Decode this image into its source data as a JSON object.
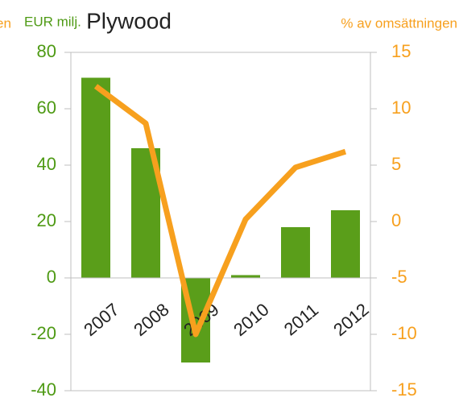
{
  "chart_data": {
    "type": "bar",
    "title": "Plywood",
    "y_label": "EUR milj.",
    "y2_label": "% av omsättningen",
    "annotations": [
      "en"
    ],
    "categories": [
      "2007",
      "2008",
      "2009",
      "2010",
      "2011",
      "2012"
    ],
    "series": [
      {
        "type": "bar",
        "color": "#5a9e1a",
        "values": [
          71,
          46,
          -30,
          1,
          18,
          24
        ]
      },
      {
        "type": "line",
        "axis": "y2",
        "color": "#f7a01e",
        "values": [
          12,
          8.7,
          -10,
          0.2,
          4.8,
          6.2
        ]
      }
    ],
    "ylim": [
      -40,
      80
    ],
    "yticks": [
      -40,
      -20,
      0,
      20,
      40,
      60,
      80
    ],
    "y2lim": [
      -15,
      15
    ],
    "y2ticks": [
      -15,
      -10,
      -5,
      0,
      5,
      10,
      15
    ],
    "grid": false
  }
}
